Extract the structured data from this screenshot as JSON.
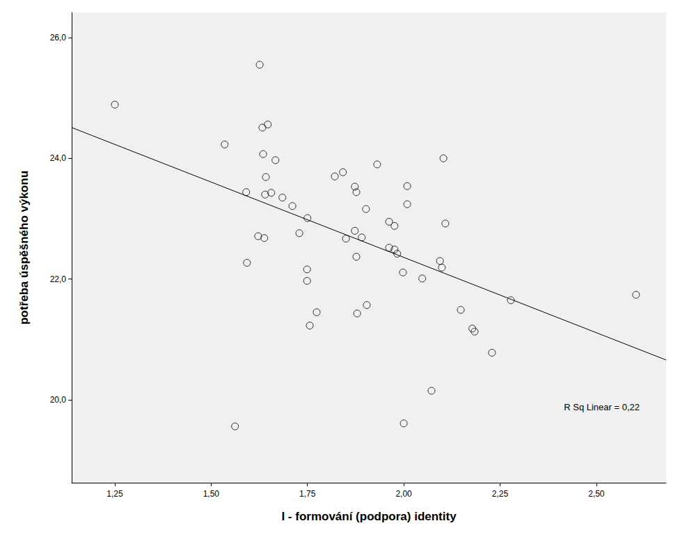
{
  "chart_data": {
    "type": "scatter",
    "x_label": "I - formování (podpora) identity",
    "y_label": "potřeba úspěšného výkonu",
    "xlim": [
      1.138,
      2.681
    ],
    "ylim": [
      18.627,
      26.415
    ],
    "xticks": [
      {
        "value": 1.25,
        "label": "1,25"
      },
      {
        "value": 1.5,
        "label": "1,50"
      },
      {
        "value": 1.75,
        "label": "1,75"
      },
      {
        "value": 2.0,
        "label": "2,00"
      },
      {
        "value": 2.25,
        "label": "2,25"
      },
      {
        "value": 2.5,
        "label": "2,50"
      }
    ],
    "yticks": [
      {
        "value": 20,
        "label": "20,0"
      },
      {
        "value": 22,
        "label": "22,0"
      },
      {
        "value": 24,
        "label": "24,0"
      },
      {
        "value": 26,
        "label": "26,0"
      }
    ],
    "grid": false,
    "annotations": [
      "R Sq Linear = 0,22"
    ],
    "series": [
      {
        "type": "scatter",
        "marker": "circle",
        "color": "#000000",
        "x": [
          1.25,
          1.535,
          1.626,
          1.633,
          1.647,
          1.635,
          1.667,
          1.591,
          1.642,
          1.64,
          1.656,
          1.685,
          1.711,
          1.622,
          1.638,
          1.593,
          1.75,
          1.729,
          1.749,
          1.749,
          1.774,
          1.756,
          1.562,
          1.821,
          1.842,
          1.931,
          1.873,
          1.877,
          1.902,
          1.85,
          1.873,
          1.891,
          1.877,
          1.904,
          1.879,
          1.962,
          1.976,
          1.962,
          1.976,
          1.983,
          1.998,
          2.009,
          2.009,
          2.048,
          2.072,
          2.0,
          2.103,
          2.108,
          2.094,
          2.099,
          2.148,
          2.178,
          2.184,
          2.229,
          2.278,
          2.603
        ],
        "y": [
          24.89,
          24.23,
          25.55,
          24.51,
          24.56,
          24.07,
          23.97,
          23.44,
          23.69,
          23.4,
          23.43,
          23.35,
          23.21,
          22.71,
          22.68,
          22.27,
          23.01,
          22.76,
          22.16,
          21.97,
          21.45,
          21.23,
          19.56,
          23.7,
          23.77,
          23.9,
          23.53,
          23.44,
          23.16,
          22.67,
          22.8,
          22.69,
          22.37,
          21.57,
          21.43,
          22.95,
          22.88,
          22.52,
          22.49,
          22.42,
          22.11,
          23.54,
          23.24,
          22.01,
          20.15,
          19.61,
          24.0,
          22.92,
          22.3,
          22.19,
          21.49,
          21.18,
          21.13,
          20.78,
          21.65,
          21.74
        ]
      },
      {
        "type": "line",
        "line_style": "solid",
        "color": "#000000",
        "x": [
          1.138,
          2.681
        ],
        "y": [
          24.51,
          20.66
        ]
      }
    ]
  }
}
